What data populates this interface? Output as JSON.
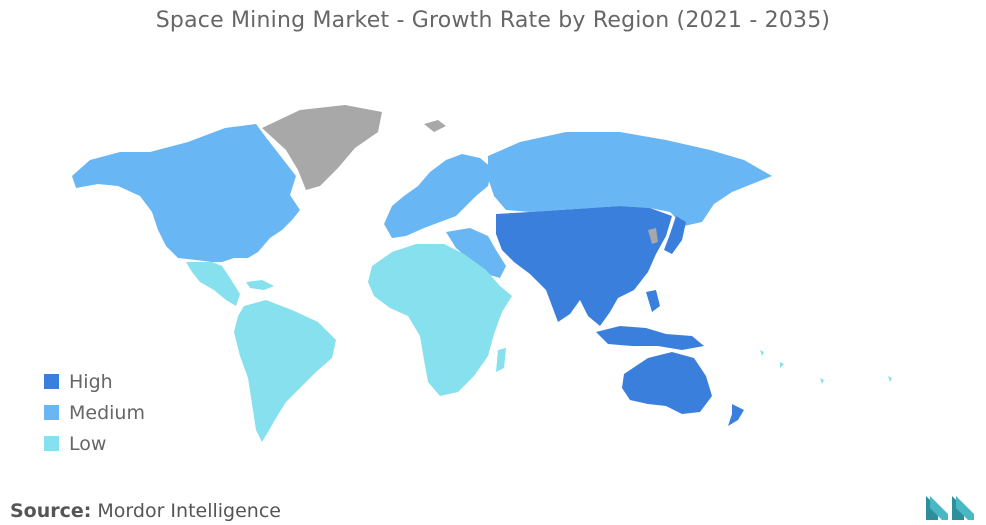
{
  "title": "Space Mining Market - Growth Rate by Region (2021 - 2035)",
  "legend": [
    {
      "label": "High",
      "color": "#3a7fdc"
    },
    {
      "label": "Medium",
      "color": "#69b6f5"
    },
    {
      "label": "Low",
      "color": "#86e0ee"
    }
  ],
  "no_data_color": "#a8a8a8",
  "source": {
    "label": "Source:",
    "value": "Mordor Intelligence"
  },
  "logo": {
    "icon": "mordor-intelligence-logo",
    "color": "#2f8e9b"
  }
}
